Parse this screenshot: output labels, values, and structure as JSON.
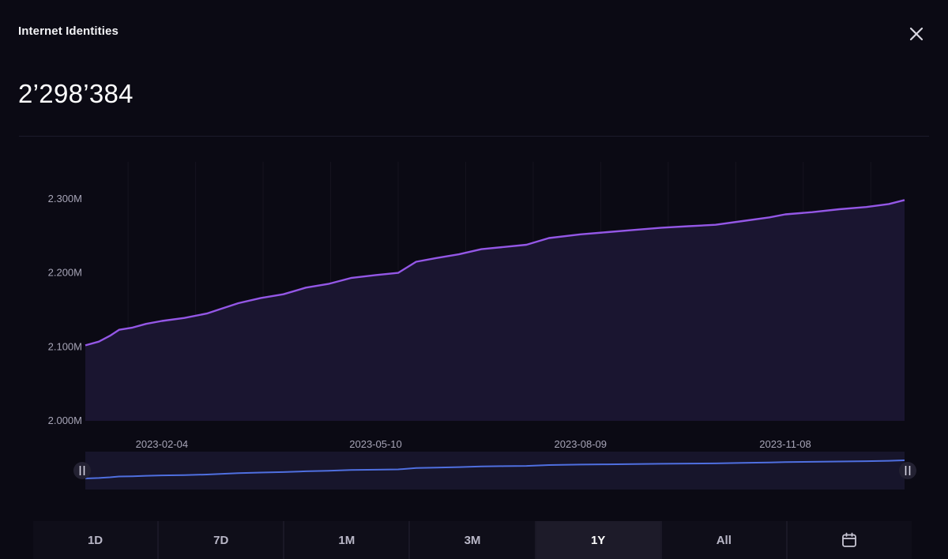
{
  "header": {
    "title": "Internet Identities",
    "value": "2’298’384"
  },
  "icons": {
    "close": "close-icon",
    "calendar": "calendar-icon"
  },
  "ranges": [
    {
      "label": "1D",
      "active": false
    },
    {
      "label": "7D",
      "active": false
    },
    {
      "label": "1M",
      "active": false
    },
    {
      "label": "3M",
      "active": false
    },
    {
      "label": "1Y",
      "active": true
    },
    {
      "label": "All",
      "active": false
    },
    {
      "label": "",
      "icon": "calendar-icon",
      "active": false
    }
  ],
  "colors": {
    "line": "#9457e6",
    "fill": "#1a1530",
    "navigator_line": "#4f6fe0",
    "navigator_fill": "#17152b",
    "background": "#0b0a14"
  },
  "chart_data": {
    "type": "area",
    "title": "",
    "xlabel": "",
    "ylabel": "",
    "ylim": [
      2000000,
      2350000
    ],
    "y_ticks": [
      2000000,
      2100000,
      2200000,
      2300000
    ],
    "y_tick_labels": [
      "2.000M",
      "2.100M",
      "2.200M",
      "2.300M"
    ],
    "x_ticks": [
      "2023-02-04",
      "2023-05-10",
      "2023-08-09",
      "2023-11-08"
    ],
    "x_range": [
      "2023-01-01",
      "2023-12-31"
    ],
    "grid": "vertical",
    "series": [
      {
        "x": [
          "2023-01-01",
          "2023-01-07",
          "2023-01-12",
          "2023-01-16",
          "2023-01-22",
          "2023-01-28",
          "2023-02-04",
          "2023-02-14",
          "2023-02-24",
          "2023-03-01",
          "2023-03-10",
          "2023-03-20",
          "2023-03-30",
          "2023-04-09",
          "2023-04-19",
          "2023-04-29",
          "2023-05-10",
          "2023-05-20",
          "2023-05-28",
          "2023-06-06",
          "2023-06-16",
          "2023-06-26",
          "2023-07-06",
          "2023-07-16",
          "2023-07-26",
          "2023-08-09",
          "2023-08-21",
          "2023-09-02",
          "2023-09-14",
          "2023-09-26",
          "2023-10-08",
          "2023-10-20",
          "2023-11-01",
          "2023-11-08",
          "2023-11-20",
          "2023-12-02",
          "2023-12-14",
          "2023-12-24",
          "2023-12-31"
        ],
        "values": [
          2102000,
          2107000,
          2115000,
          2123000,
          2126000,
          2131000,
          2135000,
          2139000,
          2145000,
          2150000,
          2159000,
          2166000,
          2171000,
          2180000,
          2185000,
          2193000,
          2197000,
          2200000,
          2215000,
          2220000,
          2225000,
          2232000,
          2235000,
          2238000,
          2247000,
          2252000,
          2255000,
          2258000,
          2261000,
          2263000,
          2265000,
          2270000,
          2275000,
          2279000,
          2282000,
          2286000,
          2289000,
          2293000,
          2298384
        ]
      }
    ]
  }
}
